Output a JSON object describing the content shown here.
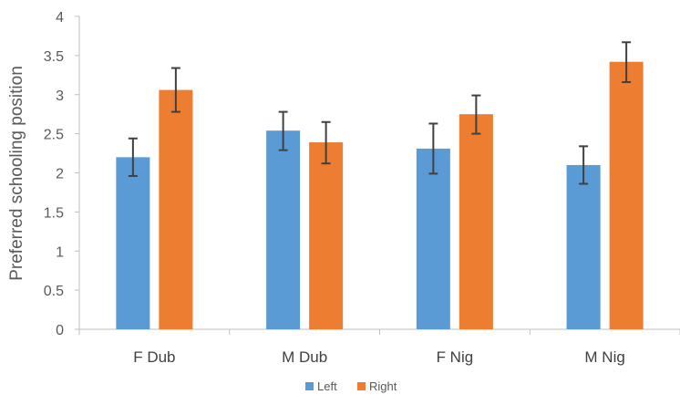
{
  "chart_data": {
    "type": "bar",
    "title": "",
    "xlabel": "",
    "ylabel": "Preferred schooling position",
    "ylim": [
      0,
      4
    ],
    "yticks": [
      "0",
      "0.5",
      "1",
      "1.5",
      "2",
      "2.5",
      "3",
      "3.5",
      "4"
    ],
    "categories": [
      "F Dub",
      "M Dub",
      "F Nig",
      "M Nig"
    ],
    "series": [
      {
        "name": "Left",
        "color": "#5B9BD5",
        "values": [
          2.2,
          2.54,
          2.31,
          2.1
        ],
        "error_low": [
          1.96,
          2.29,
          1.99,
          1.86
        ],
        "error_high": [
          2.44,
          2.78,
          2.63,
          2.34
        ]
      },
      {
        "name": "Right",
        "color": "#ED7D31",
        "values": [
          3.06,
          2.39,
          2.75,
          3.42
        ],
        "error_low": [
          2.78,
          2.12,
          2.5,
          3.16
        ],
        "error_high": [
          3.34,
          2.65,
          2.99,
          3.67
        ]
      }
    ],
    "grid": false,
    "legend": "bottom",
    "error_bar_color": "#404040"
  }
}
